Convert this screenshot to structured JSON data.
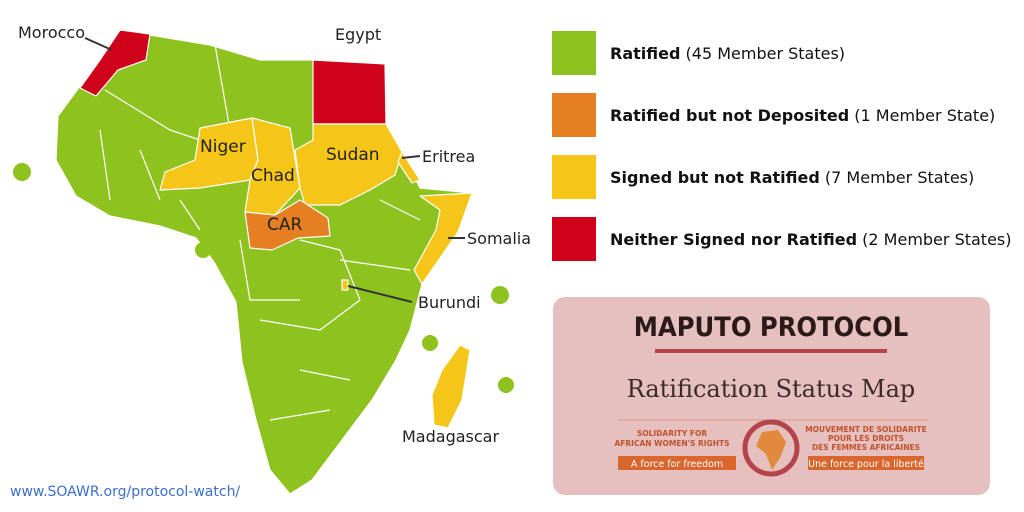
{
  "map": {
    "labels": [
      "Morocco",
      "Egypt",
      "Niger",
      "Chad",
      "Sudan",
      "Eritrea",
      "CAR",
      "Somalia",
      "Burundi",
      "Madagascar"
    ],
    "url": "www.SOAWR.org/protocol-watch/"
  },
  "legend": [
    {
      "label": "Ratified",
      "detail": "(45 Member States)",
      "color": "#8dc21f"
    },
    {
      "label": "Ratified but not Deposited",
      "detail": "(1 Member State)",
      "color": "#e67e22"
    },
    {
      "label": "Signed but not Ratified",
      "detail": "(7 Member States)",
      "color": "#f5c518"
    },
    {
      "label": "Neither Signed nor Ratified",
      "detail": "(2 Member States)",
      "color": "#d0021b"
    }
  ],
  "panel": {
    "title": "MAPUTO PROTOCOL",
    "subtitle": "Ratification Status Map",
    "logo_left": [
      "SOLIDARITY FOR",
      "AFRICAN WOMEN'S RIGHTS"
    ],
    "slogan_left": "A force for freedom",
    "logo_right": [
      "MOUVEMENT DE SOLIDARITE",
      "POUR LES DROITS",
      "DES FEMMES AFRICAINES"
    ],
    "slogan_right": "Une force pour la liberté"
  }
}
